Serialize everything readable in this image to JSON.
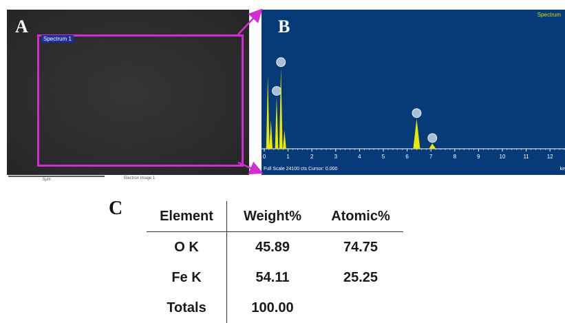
{
  "panel_labels": {
    "a": "A",
    "b": "B",
    "c": "C"
  },
  "sem_image": {
    "spectrum_tag": "Spectrum 1",
    "scale_label": "5μm",
    "caption": "Electron Image 1"
  },
  "spectrum": {
    "title": "Spectrum",
    "x_ticks": [
      "0",
      "1",
      "2",
      "3",
      "4",
      "5",
      "6",
      "7",
      "8",
      "9",
      "10",
      "11",
      "12"
    ],
    "footer": "Full Scale 24100 cts Cursor: 0.000",
    "unit": "ke",
    "peaks": [
      {
        "energy_kev": 0.15,
        "rel_height": 0.56,
        "marker": false
      },
      {
        "energy_kev": 0.28,
        "rel_height": 0.22,
        "marker": false
      },
      {
        "energy_kev": 0.52,
        "rel_height": 0.4,
        "marker": true
      },
      {
        "energy_kev": 0.7,
        "rel_height": 0.62,
        "marker": true
      },
      {
        "energy_kev": 0.85,
        "rel_height": 0.14,
        "marker": false
      },
      {
        "energy_kev": 6.4,
        "rel_height": 0.23,
        "marker": true
      },
      {
        "energy_kev": 7.06,
        "rel_height": 0.04,
        "marker": true
      }
    ],
    "colors": {
      "background": "#063a78",
      "peak": "#e8e800",
      "marker": "#c8d6e8"
    }
  },
  "table": {
    "headers": [
      "Element",
      "Weight%",
      "Atomic%"
    ],
    "rows": [
      [
        "O K",
        "45.89",
        "74.75"
      ],
      [
        "Fe K",
        "54.11",
        "25.25"
      ],
      [
        "Totals",
        "100.00",
        ""
      ]
    ]
  },
  "colors": {
    "selection": "#d52bd5",
    "spectrum_tag_bg": "#1c2f9a"
  }
}
